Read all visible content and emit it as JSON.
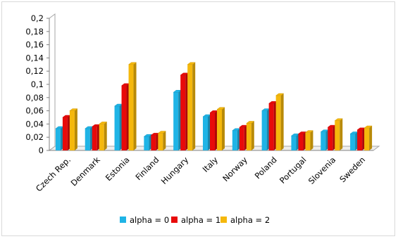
{
  "chart_data": {
    "type": "bar",
    "title": "",
    "xlabel": "",
    "ylabel": "",
    "ylim": [
      0,
      0.2
    ],
    "y_ticks": [
      "0",
      "0,02",
      "0,04",
      "0,06",
      "0,08",
      "0,1",
      "0,12",
      "0,14",
      "0,16",
      "0,18",
      "0,2"
    ],
    "grid": false,
    "legend_position": "bottom",
    "categories": [
      "Czech Rep.",
      "Denmark",
      "Estonia",
      "Finland",
      "Hungary",
      "Italy",
      "Norway",
      "Poland",
      "Portugal",
      "Slovenia",
      "Sweden"
    ],
    "series": [
      {
        "name": "alpha = 0",
        "color": "#1fb4e6",
        "values": [
          0.033,
          0.033,
          0.067,
          0.021,
          0.088,
          0.051,
          0.03,
          0.06,
          0.022,
          0.028,
          0.025
        ]
      },
      {
        "name": "alpha = 1",
        "color": "#e80a0a",
        "values": [
          0.05,
          0.036,
          0.098,
          0.023,
          0.114,
          0.057,
          0.035,
          0.071,
          0.025,
          0.035,
          0.031
        ]
      },
      {
        "name": "alpha = 2",
        "color": "#f5b80c",
        "values": [
          0.06,
          0.04,
          0.13,
          0.026,
          0.13,
          0.062,
          0.041,
          0.083,
          0.027,
          0.045,
          0.034
        ]
      }
    ]
  }
}
